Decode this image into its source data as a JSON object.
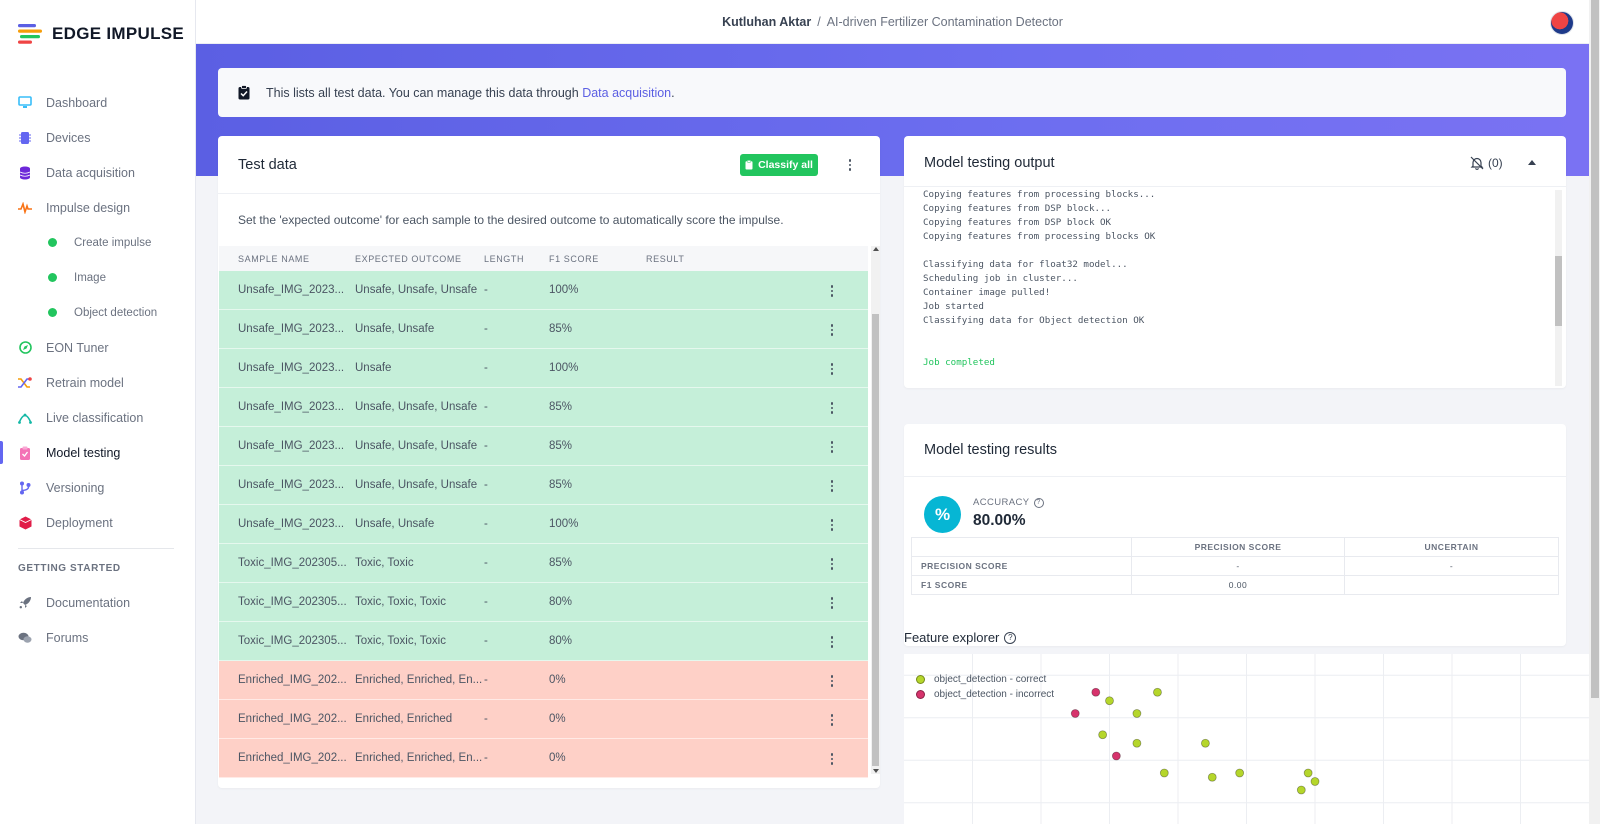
{
  "brand": {
    "name": "EDGE IMPULSE"
  },
  "header": {
    "user": "Kutluhan Aktar",
    "separator": "/",
    "project": "AI-driven Fertilizer Contamination Detector"
  },
  "sidebar": {
    "items": [
      {
        "label": "Dashboard",
        "icon": "monitor-icon",
        "color": "#38bdf8"
      },
      {
        "label": "Devices",
        "icon": "chip-icon",
        "color": "#6366f1"
      },
      {
        "label": "Data acquisition",
        "icon": "database-icon",
        "color": "#6d28d9"
      },
      {
        "label": "Impulse design",
        "icon": "pulse-icon",
        "color": "#f97316"
      },
      {
        "label": "Create impulse",
        "sub": true
      },
      {
        "label": "Image",
        "sub": true
      },
      {
        "label": "Object detection",
        "sub": true
      },
      {
        "label": "EON Tuner",
        "icon": "compass-icon",
        "color": "#22c55e"
      },
      {
        "label": "Retrain model",
        "icon": "shuffle-icon",
        "color": "#f59e0b"
      },
      {
        "label": "Live classification",
        "icon": "curve-icon",
        "color": "#14b8a6"
      },
      {
        "label": "Model testing",
        "icon": "clipboard-icon",
        "color": "#f472b6",
        "active": true
      },
      {
        "label": "Versioning",
        "icon": "branch-icon",
        "color": "#6366f1"
      },
      {
        "label": "Deployment",
        "icon": "cube-icon",
        "color": "#e11d48"
      }
    ],
    "section_title": "GETTING STARTED",
    "getting_started": [
      {
        "label": "Documentation",
        "icon": "rocket-icon"
      },
      {
        "label": "Forums",
        "icon": "chat-icon"
      }
    ]
  },
  "banner": {
    "text": "This lists all test data. You can manage this data through ",
    "link": "Data acquisition",
    "suffix": "."
  },
  "test_data": {
    "title": "Test data",
    "classify_label": "Classify all",
    "description": "Set the 'expected outcome' for each sample to the desired outcome to automatically score the impulse.",
    "columns": [
      "SAMPLE NAME",
      "EXPECTED OUTCOME",
      "LENGTH",
      "F1 SCORE",
      "RESULT"
    ],
    "rows": [
      {
        "name": "Unsafe_IMG_2023...",
        "expected": "Unsafe, Unsafe, Unsafe",
        "length": "-",
        "f1": "100%",
        "status": "ok"
      },
      {
        "name": "Unsafe_IMG_2023...",
        "expected": "Unsafe, Unsafe",
        "length": "-",
        "f1": "85%",
        "status": "ok"
      },
      {
        "name": "Unsafe_IMG_2023...",
        "expected": "Unsafe",
        "length": "-",
        "f1": "100%",
        "status": "ok"
      },
      {
        "name": "Unsafe_IMG_2023...",
        "expected": "Unsafe, Unsafe, Unsafe",
        "length": "-",
        "f1": "85%",
        "status": "ok"
      },
      {
        "name": "Unsafe_IMG_2023...",
        "expected": "Unsafe, Unsafe, Unsafe",
        "length": "-",
        "f1": "85%",
        "status": "ok"
      },
      {
        "name": "Unsafe_IMG_2023...",
        "expected": "Unsafe, Unsafe, Unsafe",
        "length": "-",
        "f1": "85%",
        "status": "ok"
      },
      {
        "name": "Unsafe_IMG_2023...",
        "expected": "Unsafe, Unsafe",
        "length": "-",
        "f1": "100%",
        "status": "ok"
      },
      {
        "name": "Toxic_IMG_202305...",
        "expected": "Toxic, Toxic",
        "length": "-",
        "f1": "85%",
        "status": "ok"
      },
      {
        "name": "Toxic_IMG_202305...",
        "expected": "Toxic, Toxic, Toxic",
        "length": "-",
        "f1": "80%",
        "status": "ok"
      },
      {
        "name": "Toxic_IMG_202305...",
        "expected": "Toxic, Toxic, Toxic",
        "length": "-",
        "f1": "80%",
        "status": "ok"
      },
      {
        "name": "Enriched_IMG_202...",
        "expected": "Enriched, Enriched, En...",
        "length": "-",
        "f1": "0%",
        "status": "bad"
      },
      {
        "name": "Enriched_IMG_202...",
        "expected": "Enriched, Enriched",
        "length": "-",
        "f1": "0%",
        "status": "bad"
      },
      {
        "name": "Enriched_IMG_202...",
        "expected": "Enriched, Enriched, En...",
        "length": "-",
        "f1": "0%",
        "status": "bad"
      }
    ]
  },
  "output": {
    "title": "Model testing output",
    "notif_count": "(0)",
    "lines": [
      {
        "text": "Copying features from processing blocks...",
        "cls": ""
      },
      {
        "text": "Copying features from DSP block...",
        "cls": ""
      },
      {
        "text": "Copying features from DSP block OK",
        "cls": ""
      },
      {
        "text": "Copying features from processing blocks OK",
        "cls": ""
      },
      {
        "text": "",
        "cls": ""
      },
      {
        "text": "Classifying data for float32 model...",
        "cls": ""
      },
      {
        "text": "Scheduling job in cluster...",
        "cls": ""
      },
      {
        "text": "Container image pulled!",
        "cls": ""
      },
      {
        "text": "Job started",
        "cls": ""
      },
      {
        "text": "Classifying data for Object detection OK",
        "cls": ""
      },
      {
        "text": "",
        "cls": ""
      },
      {
        "text": "",
        "cls": ""
      },
      {
        "text": "Job completed",
        "cls": "ok"
      }
    ]
  },
  "results": {
    "title": "Model testing results",
    "accuracy_label": "ACCURACY",
    "accuracy_value": "80.00%",
    "accuracy_icon": "%",
    "table": {
      "headers": [
        "",
        "PRECISION SCORE",
        "UNCERTAIN"
      ],
      "rows": [
        {
          "label": "PRECISION SCORE",
          "v1": "-",
          "v2": "-"
        },
        {
          "label": "F1 SCORE",
          "v1": "0.00",
          "v2": ""
        }
      ]
    }
  },
  "feature_explorer": {
    "title": "Feature explorer",
    "legend": [
      {
        "label": "object_detection - correct",
        "color": "#b5d62b"
      },
      {
        "label": "object_detection - incorrect",
        "color": "#d6336c"
      }
    ]
  },
  "chart_data": {
    "type": "scatter",
    "xlabel": "",
    "ylabel": "",
    "grid": true,
    "legend_position": "top-left",
    "series": [
      {
        "name": "object_detection - correct",
        "points": [
          [
            3.0,
            2.4
          ],
          [
            3.4,
            2.1
          ],
          [
            3.7,
            2.6
          ],
          [
            2.9,
            1.6
          ],
          [
            3.4,
            1.4
          ],
          [
            4.4,
            1.4
          ],
          [
            3.8,
            0.7
          ],
          [
            4.5,
            0.6
          ],
          [
            4.9,
            0.7
          ],
          [
            5.9,
            0.7
          ],
          [
            6.0,
            0.5
          ],
          [
            5.8,
            0.3
          ]
        ]
      },
      {
        "name": "object_detection - incorrect",
        "points": [
          [
            2.5,
            2.1
          ],
          [
            2.8,
            2.6
          ],
          [
            3.1,
            1.1
          ]
        ]
      }
    ]
  }
}
